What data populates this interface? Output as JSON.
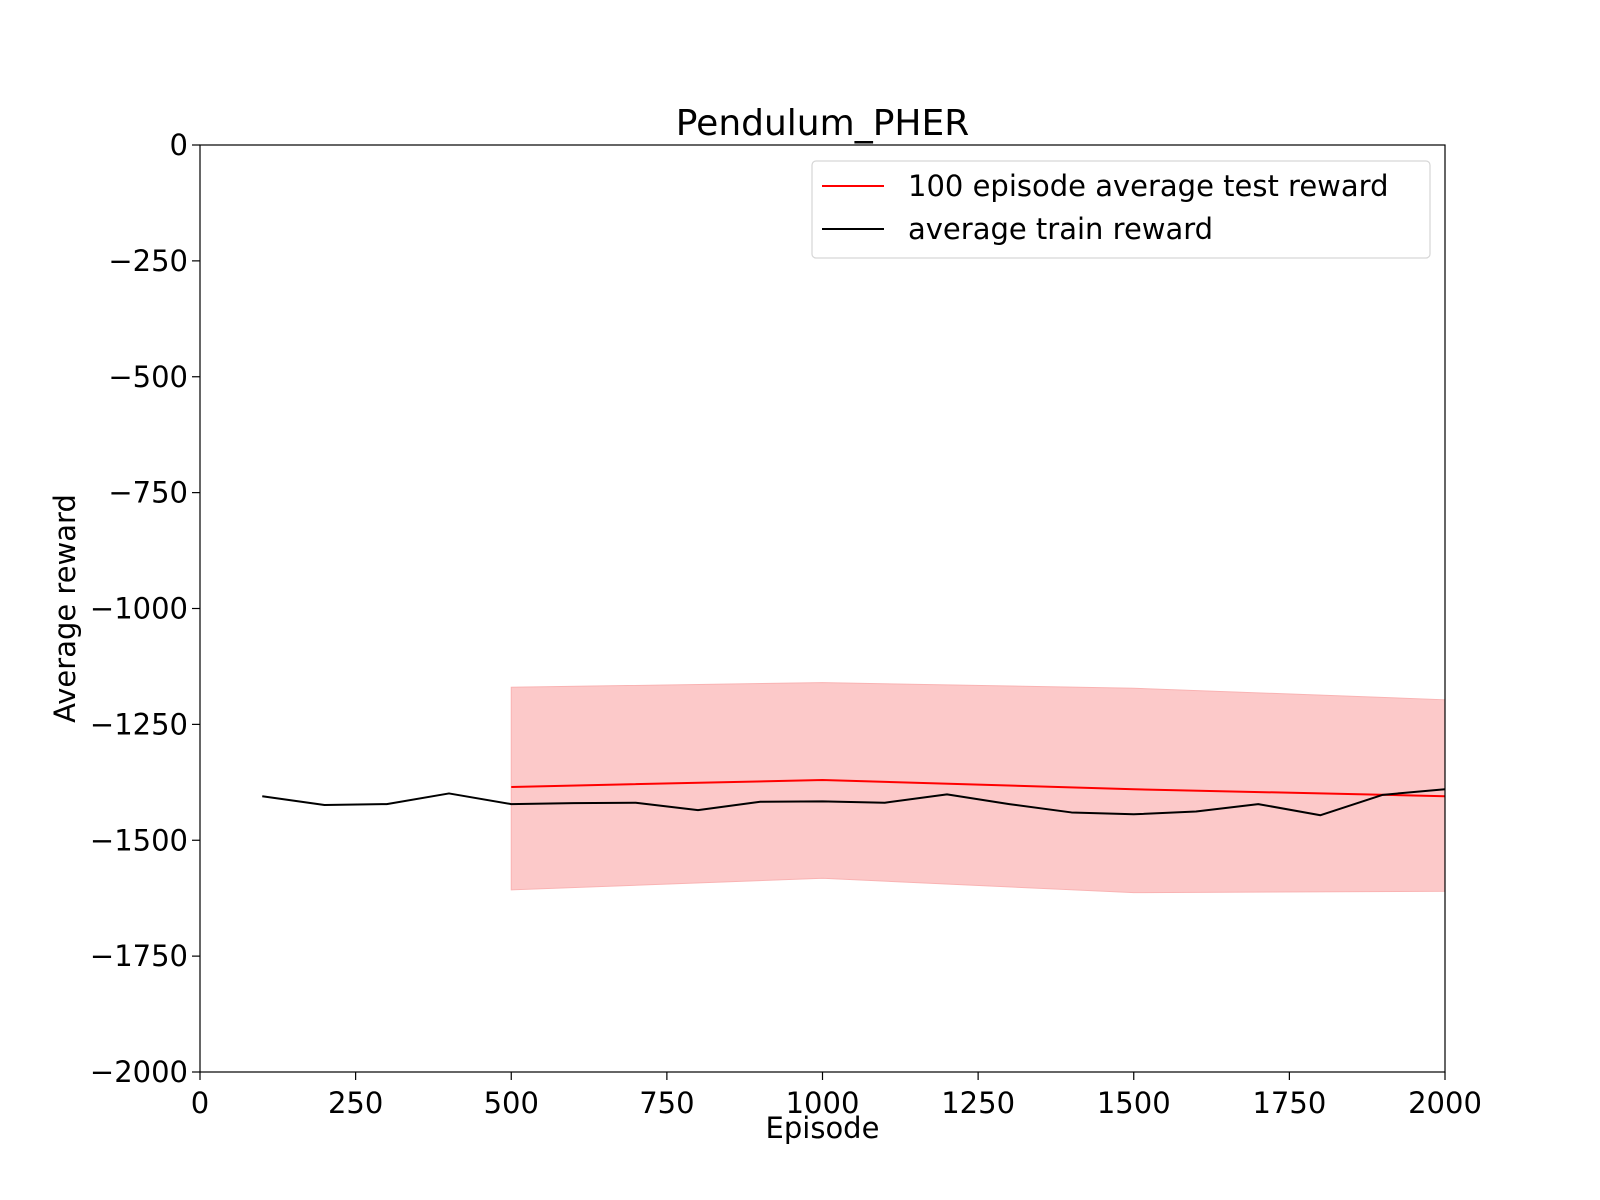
{
  "chart_data": {
    "type": "line",
    "title": "Pendulum_PHER",
    "xlabel": "Episode",
    "ylabel": "Average reward",
    "xlim": [
      0,
      2000
    ],
    "ylim": [
      -2000,
      0
    ],
    "x_ticks": [
      0,
      250,
      500,
      750,
      1000,
      1250,
      1500,
      1750,
      2000
    ],
    "x_tick_labels": [
      "0",
      "250",
      "500",
      "750",
      "1000",
      "1250",
      "1500",
      "1750",
      "2000"
    ],
    "y_ticks": [
      0,
      -250,
      -500,
      -750,
      -1000,
      -1250,
      -1500,
      -1750,
      -2000
    ],
    "y_tick_labels": [
      "0",
      "−250",
      "−500",
      "−750",
      "−1000",
      "−1250",
      "−1500",
      "−1750",
      "−2000"
    ],
    "grid": false,
    "legend_position": "top-right",
    "series": [
      {
        "name": "100 episode average test reward",
        "color": "#ff0000",
        "x": [
          500,
          1000,
          1500,
          2000
        ],
        "y": [
          -1385,
          -1370,
          -1390,
          -1405
        ],
        "band_upper": [
          -1170,
          -1160,
          -1172,
          -1197
        ],
        "band_lower": [
          -1607,
          -1582,
          -1613,
          -1610
        ],
        "band_color": "#fcc9c9"
      },
      {
        "name": "average train reward",
        "color": "#000000",
        "x": [
          100,
          200,
          300,
          400,
          500,
          600,
          700,
          800,
          900,
          1000,
          1100,
          1200,
          1300,
          1400,
          1500,
          1600,
          1700,
          1800,
          1900,
          2000
        ],
        "y": [
          -1405,
          -1424,
          -1422,
          -1399,
          -1422,
          -1420,
          -1419,
          -1435,
          -1417,
          -1416,
          -1419,
          -1401,
          -1422,
          -1440,
          -1444,
          -1438,
          -1422,
          -1446,
          -1402,
          -1390
        ]
      }
    ]
  }
}
